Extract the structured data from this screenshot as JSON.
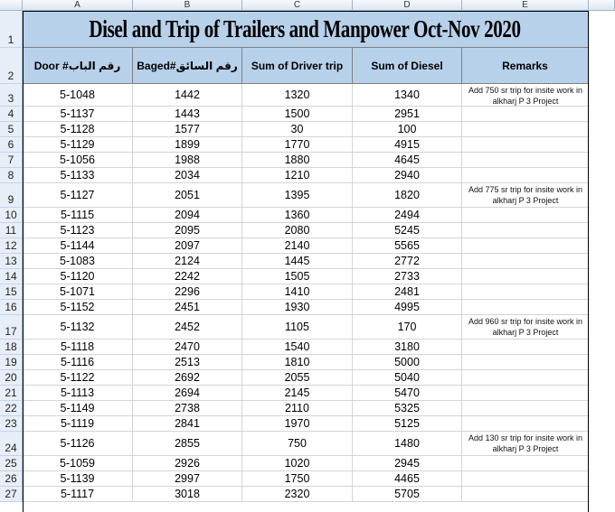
{
  "columns": [
    "A",
    "B",
    "C",
    "D",
    "E"
  ],
  "title": "Disel and Trip of Trailers and Manpower Oct-Nov 2020",
  "headers": [
    "Door #رقم الباب",
    "Baged#رقم السائق",
    "Sum of Driver trip",
    "Sum of Diesel",
    "Remarks"
  ],
  "row_numbers": [
    "1",
    "2",
    "3",
    "4",
    "5",
    "6",
    "7",
    "8",
    "9",
    "10",
    "11",
    "12",
    "13",
    "14",
    "15",
    "16",
    "17",
    "18",
    "19",
    "20",
    "21",
    "22",
    "23",
    "24",
    "25",
    "26",
    "27"
  ],
  "rows": [
    {
      "door": "5-1048",
      "baged": "1442",
      "trip": "1320",
      "diesel": "1340",
      "remark": "Add 750 sr trip for insite work in alkharj P 3 Project"
    },
    {
      "door": "5-1137",
      "baged": "1443",
      "trip": "1500",
      "diesel": "2951",
      "remark": ""
    },
    {
      "door": "5-1128",
      "baged": "1577",
      "trip": "30",
      "diesel": "100",
      "remark": ""
    },
    {
      "door": "5-1129",
      "baged": "1899",
      "trip": "1770",
      "diesel": "4915",
      "remark": ""
    },
    {
      "door": "5-1056",
      "baged": "1988",
      "trip": "1880",
      "diesel": "4645",
      "remark": ""
    },
    {
      "door": "5-1133",
      "baged": "2034",
      "trip": "1210",
      "diesel": "2940",
      "remark": ""
    },
    {
      "door": "5-1127",
      "baged": "2051",
      "trip": "1395",
      "diesel": "1820",
      "remark": "Add 775 sr trip for insite work in alkharj P 3 Project"
    },
    {
      "door": "5-1115",
      "baged": "2094",
      "trip": "1360",
      "diesel": "2494",
      "remark": ""
    },
    {
      "door": "5-1123",
      "baged": "2095",
      "trip": "2080",
      "diesel": "5245",
      "remark": ""
    },
    {
      "door": "5-1144",
      "baged": "2097",
      "trip": "2140",
      "diesel": "5565",
      "remark": ""
    },
    {
      "door": "5-1083",
      "baged": "2124",
      "trip": "1445",
      "diesel": "2772",
      "remark": ""
    },
    {
      "door": "5-1120",
      "baged": "2242",
      "trip": "1505",
      "diesel": "2733",
      "remark": ""
    },
    {
      "door": "5-1071",
      "baged": "2296",
      "trip": "1410",
      "diesel": "2481",
      "remark": ""
    },
    {
      "door": "5-1152",
      "baged": "2451",
      "trip": "1930",
      "diesel": "4995",
      "remark": ""
    },
    {
      "door": "5-1132",
      "baged": "2452",
      "trip": "1105",
      "diesel": "170",
      "remark": "Add 960 sr trip for insite work in alkharj P 3 Project"
    },
    {
      "door": "5-1118",
      "baged": "2470",
      "trip": "1540",
      "diesel": "3180",
      "remark": ""
    },
    {
      "door": "5-1116",
      "baged": "2513",
      "trip": "1810",
      "diesel": "5000",
      "remark": ""
    },
    {
      "door": "5-1122",
      "baged": "2692",
      "trip": "2055",
      "diesel": "5040",
      "remark": ""
    },
    {
      "door": "5-1113",
      "baged": "2694",
      "trip": "2145",
      "diesel": "5470",
      "remark": ""
    },
    {
      "door": "5-1149",
      "baged": "2738",
      "trip": "2110",
      "diesel": "5325",
      "remark": ""
    },
    {
      "door": "5-1119",
      "baged": "2841",
      "trip": "1970",
      "diesel": "5125",
      "remark": ""
    },
    {
      "door": "5-1126",
      "baged": "2855",
      "trip": "750",
      "diesel": "1480",
      "remark": "Add 130 sr trip for insite work in alkharj P 3 Project"
    },
    {
      "door": "5-1059",
      "baged": "2926",
      "trip": "1020",
      "diesel": "2945",
      "remark": ""
    },
    {
      "door": "5-1139",
      "baged": "2997",
      "trip": "1750",
      "diesel": "4465",
      "remark": ""
    },
    {
      "door": "5-1117",
      "baged": "3018",
      "trip": "2320",
      "diesel": "5705",
      "remark": ""
    }
  ]
}
